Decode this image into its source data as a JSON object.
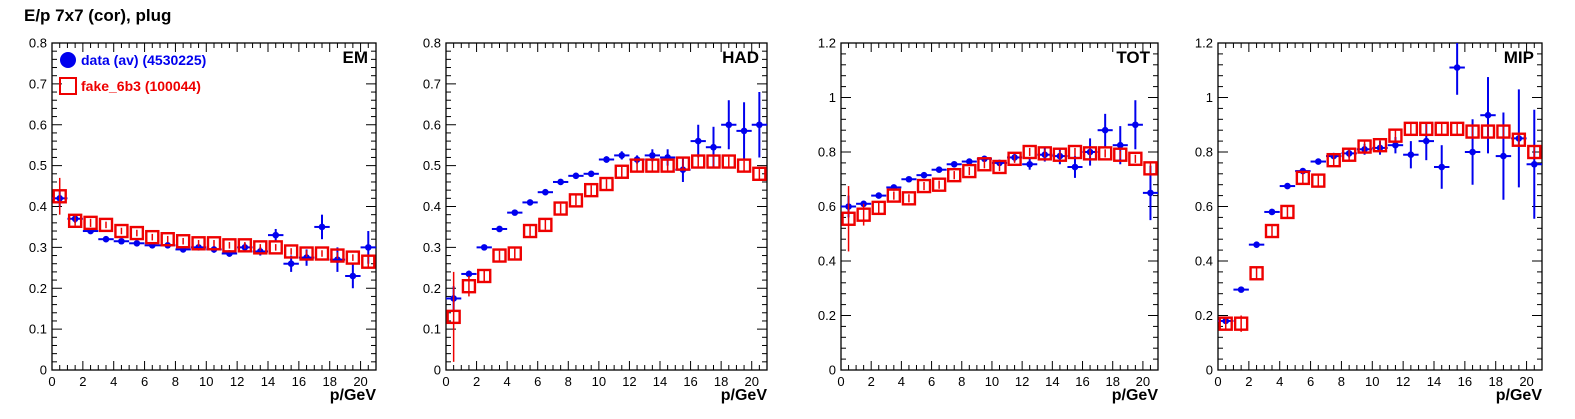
{
  "title": "E/p 7x7 (cor), plug",
  "legend": {
    "data_label": "data (av) (4530225)",
    "fake_label": "fake_6b3 (100044)"
  },
  "colors": {
    "data": "#0000ee",
    "fake": "#ee0000",
    "axis": "#000000"
  },
  "chart_data": [
    {
      "type": "scatter",
      "panel": "EM",
      "xlabel": "p/GeV",
      "xlim": [
        0,
        21
      ],
      "ylim": [
        0,
        0.8
      ],
      "yticks": [
        "0",
        "0.1",
        "0.2",
        "0.3",
        "0.4",
        "0.5",
        "0.6",
        "0.7",
        "0.8"
      ],
      "xticks": [
        "0",
        "2",
        "4",
        "6",
        "8",
        "10",
        "12",
        "14",
        "16",
        "18",
        "20"
      ],
      "x": [
        0.5,
        1.5,
        2.5,
        3.5,
        4.5,
        5.5,
        6.5,
        7.5,
        8.5,
        9.5,
        10.5,
        11.5,
        12.5,
        13.5,
        14.5,
        15.5,
        16.5,
        17.5,
        18.5,
        19.5,
        20.5
      ],
      "series": [
        {
          "name": "data (av) (4530225)",
          "values": [
            0.42,
            0.37,
            0.34,
            0.32,
            0.315,
            0.31,
            0.305,
            0.305,
            0.295,
            0.3,
            0.295,
            0.285,
            0.3,
            0.29,
            0.33,
            0.26,
            0.275,
            0.35,
            0.27,
            0.23,
            0.3
          ],
          "errors": [
            0.02,
            0.01,
            0.005,
            0.005,
            0.005,
            0.005,
            0.005,
            0.005,
            0.005,
            0.005,
            0.008,
            0.008,
            0.01,
            0.01,
            0.015,
            0.02,
            0.02,
            0.03,
            0.03,
            0.03,
            0.04
          ]
        },
        {
          "name": "fake_6b3 (100044)",
          "values": [
            0.425,
            0.365,
            0.36,
            0.355,
            0.34,
            0.335,
            0.325,
            0.32,
            0.315,
            0.31,
            0.31,
            0.305,
            0.305,
            0.3,
            0.3,
            0.29,
            0.285,
            0.285,
            0.28,
            0.275,
            0.265
          ],
          "errors": [
            0.045,
            0.012,
            0.01,
            0.008,
            0.008,
            0.008,
            0.008,
            0.008,
            0.008,
            0.008,
            0.008,
            0.008,
            0.008,
            0.008,
            0.008,
            0.008,
            0.008,
            0.008,
            0.008,
            0.008,
            0.015
          ]
        }
      ]
    },
    {
      "type": "scatter",
      "panel": "HAD",
      "xlabel": "p/GeV",
      "xlim": [
        0,
        21
      ],
      "ylim": [
        0,
        0.8
      ],
      "yticks": [
        "0",
        "0.1",
        "0.2",
        "0.3",
        "0.4",
        "0.5",
        "0.6",
        "0.7",
        "0.8"
      ],
      "xticks": [
        "0",
        "2",
        "4",
        "6",
        "8",
        "10",
        "12",
        "14",
        "16",
        "18",
        "20"
      ],
      "x": [
        0.5,
        1.5,
        2.5,
        3.5,
        4.5,
        5.5,
        6.5,
        7.5,
        8.5,
        9.5,
        10.5,
        11.5,
        12.5,
        13.5,
        14.5,
        15.5,
        16.5,
        17.5,
        18.5,
        19.5,
        20.5
      ],
      "series": [
        {
          "name": "data (av) (4530225)",
          "values": [
            0.175,
            0.235,
            0.3,
            0.345,
            0.385,
            0.41,
            0.435,
            0.46,
            0.475,
            0.48,
            0.515,
            0.525,
            0.515,
            0.525,
            0.52,
            0.49,
            0.56,
            0.545,
            0.6,
            0.585,
            0.6
          ],
          "errors": [
            0.03,
            0.008,
            0.005,
            0.005,
            0.005,
            0.005,
            0.005,
            0.005,
            0.005,
            0.005,
            0.008,
            0.01,
            0.01,
            0.015,
            0.02,
            0.03,
            0.04,
            0.05,
            0.06,
            0.07,
            0.08
          ]
        },
        {
          "name": "fake_6b3 (100044)",
          "values": [
            0.13,
            0.205,
            0.23,
            0.28,
            0.285,
            0.34,
            0.355,
            0.395,
            0.415,
            0.44,
            0.455,
            0.485,
            0.5,
            0.5,
            0.5,
            0.505,
            0.51,
            0.51,
            0.51,
            0.5,
            0.48
          ],
          "errors": [
            0.11,
            0.025,
            0.015,
            0.012,
            0.012,
            0.012,
            0.012,
            0.012,
            0.012,
            0.012,
            0.012,
            0.012,
            0.012,
            0.012,
            0.012,
            0.012,
            0.012,
            0.012,
            0.012,
            0.012,
            0.015
          ]
        }
      ]
    },
    {
      "type": "scatter",
      "panel": "TOT",
      "xlabel": "p/GeV",
      "xlim": [
        0,
        21
      ],
      "ylim": [
        0,
        1.2
      ],
      "yticks": [
        "0",
        "0.2",
        "0.4",
        "0.6",
        "0.8",
        "1",
        "1.2"
      ],
      "xticks": [
        "0",
        "2",
        "4",
        "6",
        "8",
        "10",
        "12",
        "14",
        "16",
        "18",
        "20"
      ],
      "x": [
        0.5,
        1.5,
        2.5,
        3.5,
        4.5,
        5.5,
        6.5,
        7.5,
        8.5,
        9.5,
        10.5,
        11.5,
        12.5,
        13.5,
        14.5,
        15.5,
        16.5,
        17.5,
        18.5,
        19.5,
        20.5
      ],
      "series": [
        {
          "name": "data (av) (4530225)",
          "values": [
            0.6,
            0.61,
            0.64,
            0.67,
            0.7,
            0.715,
            0.735,
            0.755,
            0.765,
            0.775,
            0.76,
            0.78,
            0.755,
            0.79,
            0.785,
            0.745,
            0.8,
            0.88,
            0.825,
            0.9,
            0.65
          ],
          "errors": [
            0.04,
            0.01,
            0.005,
            0.005,
            0.005,
            0.005,
            0.005,
            0.005,
            0.005,
            0.008,
            0.01,
            0.015,
            0.02,
            0.025,
            0.03,
            0.04,
            0.05,
            0.06,
            0.07,
            0.09,
            0.1
          ]
        },
        {
          "name": "fake_6b3 (100044)",
          "values": [
            0.555,
            0.57,
            0.595,
            0.64,
            0.63,
            0.675,
            0.68,
            0.715,
            0.73,
            0.755,
            0.745,
            0.775,
            0.8,
            0.795,
            0.79,
            0.8,
            0.795,
            0.795,
            0.79,
            0.775,
            0.74
          ],
          "errors": [
            0.12,
            0.04,
            0.02,
            0.015,
            0.015,
            0.015,
            0.015,
            0.015,
            0.015,
            0.015,
            0.015,
            0.015,
            0.015,
            0.015,
            0.015,
            0.015,
            0.015,
            0.015,
            0.015,
            0.015,
            0.02
          ]
        }
      ]
    },
    {
      "type": "scatter",
      "panel": "MIP",
      "xlabel": "p/GeV",
      "xlim": [
        0,
        21
      ],
      "ylim": [
        0,
        1.2
      ],
      "yticks": [
        "0",
        "0.2",
        "0.4",
        "0.6",
        "0.8",
        "1",
        "1.2"
      ],
      "xticks": [
        "0",
        "2",
        "4",
        "6",
        "8",
        "10",
        "12",
        "14",
        "16",
        "18",
        "20"
      ],
      "x": [
        0.5,
        1.5,
        2.5,
        3.5,
        4.5,
        5.5,
        6.5,
        7.5,
        8.5,
        9.5,
        10.5,
        11.5,
        12.5,
        13.5,
        14.5,
        15.5,
        16.5,
        17.5,
        18.5,
        19.5,
        20.5
      ],
      "series": [
        {
          "name": "data (av) (4530225)",
          "values": [
            0.18,
            0.295,
            0.46,
            0.58,
            0.675,
            0.73,
            0.765,
            0.785,
            0.795,
            0.81,
            0.815,
            0.825,
            0.79,
            0.84,
            0.745,
            1.11,
            0.8,
            0.935,
            0.785,
            0.85,
            0.755
          ],
          "errors": [
            0.008,
            0.008,
            0.005,
            0.005,
            0.005,
            0.008,
            0.008,
            0.01,
            0.015,
            0.02,
            0.025,
            0.03,
            0.05,
            0.07,
            0.08,
            0.1,
            0.12,
            0.14,
            0.16,
            0.18,
            0.2
          ]
        },
        {
          "name": "fake_6b3 (100044)",
          "values": [
            0.17,
            0.17,
            0.355,
            0.51,
            0.58,
            0.705,
            0.695,
            0.77,
            0.79,
            0.82,
            0.825,
            0.86,
            0.885,
            0.885,
            0.885,
            0.885,
            0.875,
            0.875,
            0.875,
            0.845,
            0.8
          ],
          "errors": [
            0.02,
            0.03,
            0.02,
            0.02,
            0.02,
            0.02,
            0.02,
            0.02,
            0.02,
            0.02,
            0.02,
            0.02,
            0.02,
            0.02,
            0.02,
            0.02,
            0.02,
            0.02,
            0.02,
            0.02,
            0.025
          ]
        }
      ]
    }
  ]
}
